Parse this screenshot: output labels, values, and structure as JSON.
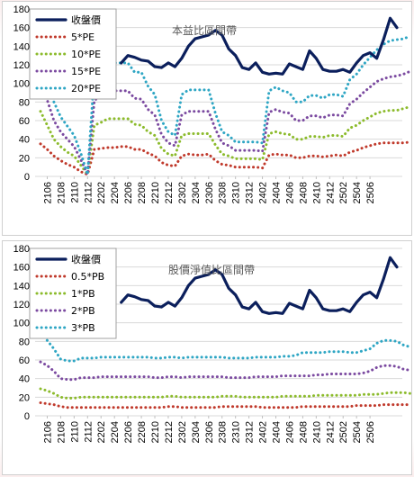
{
  "chart_data": [
    {
      "type": "line",
      "title": "本益比區間帶",
      "ylim": [
        0,
        180
      ],
      "yticks": [
        0,
        20,
        40,
        60,
        80,
        100,
        120,
        140,
        160,
        180
      ],
      "xticklabels": [
        "2106",
        "2108",
        "2110",
        "2112",
        "2202",
        "2204",
        "2206",
        "2208",
        "2210",
        "2212",
        "2302",
        "2304",
        "2306",
        "2308",
        "2310",
        "2312",
        "2402",
        "2404",
        "2406",
        "2408",
        "2410",
        "2412",
        "2502",
        "2504",
        "2506"
      ],
      "legend_position": "top-left",
      "series": [
        {
          "name": "收盤價",
          "color": "#0b1f5c",
          "style": "solid",
          "values": [
            null,
            null,
            null,
            null,
            null,
            null,
            null,
            null,
            null,
            null,
            null,
            null,
            122,
            130,
            128,
            125,
            124,
            118,
            117,
            122,
            118,
            127,
            140,
            148,
            150,
            152,
            157,
            152,
            137,
            130,
            117,
            115,
            122,
            112,
            110,
            111,
            110,
            121,
            118,
            115,
            135,
            127,
            115,
            113,
            113,
            115,
            112,
            122,
            130,
            133,
            127,
            147,
            170,
            160
          ]
        },
        {
          "name": "5*PE",
          "color": "#c0392b",
          "style": "dotted",
          "values": [
            35,
            29,
            22,
            17,
            13,
            10,
            5,
            2,
            29,
            30,
            31,
            31,
            32,
            32,
            29,
            29,
            25,
            22,
            15,
            12,
            11,
            22,
            24,
            23,
            23,
            24,
            17,
            13,
            12,
            10,
            10,
            10,
            10,
            9,
            23,
            24,
            23,
            23,
            20,
            20,
            22,
            22,
            21,
            22,
            23,
            22,
            26,
            28,
            31,
            33,
            35,
            36,
            36,
            36,
            36,
            37
          ]
        },
        {
          "name": "10*PE",
          "color": "#8cbb2c",
          "style": "dotted",
          "values": [
            70,
            55,
            40,
            32,
            26,
            22,
            12,
            2,
            55,
            58,
            62,
            62,
            62,
            62,
            56,
            55,
            48,
            44,
            30,
            24,
            22,
            44,
            46,
            46,
            46,
            46,
            34,
            24,
            22,
            19,
            19,
            19,
            19,
            18,
            46,
            48,
            46,
            45,
            40,
            40,
            43,
            43,
            42,
            44,
            44,
            43,
            52,
            55,
            60,
            64,
            68,
            70,
            71,
            71,
            73,
            75
          ]
        },
        {
          "name": "15*PE",
          "color": "#7b4aa0",
          "style": "dotted",
          "values": [
            104,
            82,
            60,
            48,
            40,
            32,
            18,
            2,
            82,
            86,
            92,
            92,
            92,
            92,
            84,
            83,
            72,
            66,
            45,
            36,
            33,
            66,
            70,
            70,
            70,
            70,
            51,
            36,
            33,
            28,
            28,
            28,
            28,
            27,
            69,
            72,
            69,
            68,
            60,
            60,
            65,
            65,
            63,
            66,
            66,
            65,
            78,
            83,
            90,
            96,
            102,
            105,
            107,
            108,
            110,
            113
          ]
        },
        {
          "name": "20*PE",
          "color": "#2ea6c4",
          "style": "dotted",
          "values": [
            null,
            null,
            80,
            64,
            54,
            44,
            25,
            2,
            110,
            115,
            122,
            122,
            122,
            122,
            112,
            112,
            97,
            88,
            60,
            48,
            44,
            88,
            93,
            93,
            93,
            93,
            68,
            48,
            44,
            37,
            37,
            37,
            37,
            36,
            92,
            96,
            92,
            90,
            80,
            80,
            87,
            87,
            84,
            88,
            88,
            86,
            104,
            110,
            120,
            128,
            136,
            142,
            146,
            147,
            148,
            151
          ]
        }
      ]
    },
    {
      "type": "line",
      "title": "股價淨值比區間帶",
      "ylim": [
        0,
        180
      ],
      "yticks": [
        0,
        20,
        40,
        60,
        80,
        100,
        120,
        140,
        160,
        180
      ],
      "xticklabels": [
        "2106",
        "2108",
        "2110",
        "2112",
        "2202",
        "2204",
        "2206",
        "2208",
        "2210",
        "2212",
        "2302",
        "2304",
        "2306",
        "2308",
        "2310",
        "2312",
        "2402",
        "2404",
        "2406",
        "2408",
        "2410",
        "2412",
        "2502",
        "2504",
        "2506"
      ],
      "legend_position": "top-left",
      "series": [
        {
          "name": "收盤價",
          "color": "#0b1f5c",
          "style": "solid",
          "values": [
            null,
            null,
            null,
            null,
            null,
            null,
            null,
            null,
            null,
            null,
            null,
            null,
            122,
            130,
            128,
            125,
            124,
            118,
            117,
            122,
            118,
            127,
            140,
            148,
            150,
            152,
            157,
            152,
            137,
            130,
            117,
            115,
            122,
            112,
            110,
            111,
            110,
            121,
            118,
            115,
            135,
            127,
            115,
            113,
            113,
            115,
            112,
            122,
            130,
            133,
            127,
            147,
            170,
            160
          ]
        },
        {
          "name": "0.5*PB",
          "color": "#c0392b",
          "style": "dotted",
          "values": [
            14,
            13,
            12,
            10,
            9,
            9,
            9,
            9,
            9,
            9,
            9,
            9,
            9,
            9,
            9,
            9,
            9,
            9,
            9,
            10,
            10,
            9,
            9,
            9,
            9,
            9,
            9,
            10,
            10,
            10,
            10,
            10,
            10,
            9,
            9,
            9,
            9,
            9,
            9,
            10,
            10,
            10,
            10,
            10,
            10,
            10,
            10,
            11,
            11,
            11,
            11,
            12,
            12,
            12,
            12,
            12
          ]
        },
        {
          "name": "1*PB",
          "color": "#8cbb2c",
          "style": "dotted",
          "values": [
            29,
            27,
            24,
            20,
            19,
            19,
            20,
            20,
            20,
            20,
            20,
            20,
            20,
            20,
            20,
            20,
            20,
            20,
            20,
            21,
            21,
            20,
            20,
            20,
            20,
            20,
            20,
            21,
            21,
            21,
            20,
            20,
            20,
            20,
            20,
            20,
            21,
            21,
            21,
            21,
            21,
            22,
            22,
            22,
            22,
            22,
            22,
            22,
            23,
            23,
            23,
            24,
            25,
            25,
            25,
            24
          ]
        },
        {
          "name": "2*PB",
          "color": "#7b4aa0",
          "style": "dotted",
          "values": [
            58,
            54,
            48,
            40,
            39,
            39,
            41,
            41,
            41,
            42,
            42,
            42,
            42,
            42,
            42,
            42,
            42,
            41,
            41,
            42,
            42,
            41,
            42,
            42,
            42,
            42,
            42,
            42,
            41,
            41,
            41,
            41,
            42,
            42,
            42,
            42,
            43,
            43,
            43,
            43,
            43,
            44,
            44,
            45,
            45,
            45,
            45,
            45,
            46,
            48,
            52,
            54,
            54,
            53,
            50,
            49
          ]
        },
        {
          "name": "3*PB",
          "color": "#2ea6c4",
          "style": "dotted",
          "values": [
            88,
            81,
            72,
            61,
            59,
            59,
            62,
            62,
            62,
            63,
            63,
            63,
            63,
            63,
            63,
            63,
            63,
            62,
            62,
            63,
            63,
            62,
            63,
            63,
            63,
            63,
            63,
            63,
            62,
            62,
            62,
            62,
            63,
            63,
            63,
            63,
            64,
            64,
            65,
            68,
            68,
            68,
            68,
            69,
            69,
            69,
            68,
            68,
            70,
            72,
            78,
            81,
            81,
            80,
            76,
            74
          ]
        }
      ]
    }
  ]
}
